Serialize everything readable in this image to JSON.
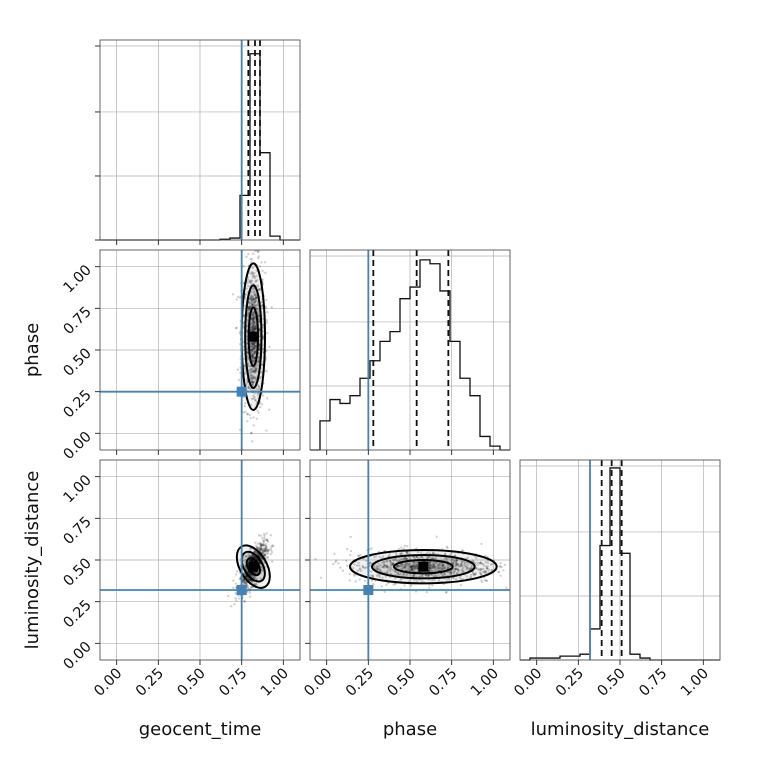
{
  "parameters": [
    "geocent_time",
    "phase",
    "luminosity_distance"
  ],
  "axis_labels": {
    "geocent_time": "geocent_time",
    "phase": "phase",
    "luminosity_distance": "luminosity_distance"
  },
  "tick_labels": [
    "0.00",
    "0.25",
    "0.50",
    "0.75",
    "1.00"
  ],
  "colors": {
    "truth": "#4682b4",
    "hist": "#111111",
    "grid": "#b0b0b0"
  },
  "chart_data": {
    "type": "corner",
    "range": [
      -0.1,
      1.1
    ],
    "ticks": [
      0.0,
      0.25,
      0.5,
      0.75,
      1.0
    ],
    "grid": true,
    "truths": {
      "geocent_time": 0.75,
      "phase": 0.25,
      "luminosity_distance": 0.32
    },
    "quantiles": {
      "geocent_time": [
        0.79,
        0.83,
        0.86
      ],
      "phase": [
        0.28,
        0.54,
        0.73
      ],
      "luminosity_distance": [
        0.39,
        0.45,
        0.51
      ]
    },
    "histograms": {
      "geocent_time": {
        "bin_edges": [
          -0.1,
          -0.04,
          0.02,
          0.08,
          0.14,
          0.2,
          0.26,
          0.32,
          0.38,
          0.44,
          0.5,
          0.56,
          0.62,
          0.68,
          0.74,
          0.8,
          0.86,
          0.92,
          0.98,
          1.04,
          1.1
        ],
        "counts": [
          0,
          0,
          0,
          0,
          0,
          0,
          0,
          0,
          0,
          0,
          0,
          0,
          0.004,
          0.01,
          0.23,
          0.96,
          0.45,
          0.02,
          0,
          0
        ]
      },
      "phase": {
        "bin_edges": [
          -0.1,
          -0.04,
          0.02,
          0.08,
          0.14,
          0.2,
          0.26,
          0.32,
          0.38,
          0.44,
          0.5,
          0.56,
          0.62,
          0.68,
          0.74,
          0.8,
          0.86,
          0.92,
          0.98,
          1.04,
          1.1
        ],
        "counts": [
          0,
          0.15,
          0.26,
          0.24,
          0.28,
          0.37,
          0.46,
          0.56,
          0.61,
          0.78,
          0.84,
          0.98,
          0.96,
          0.82,
          0.56,
          0.37,
          0.28,
          0.07,
          0.02,
          0
        ]
      },
      "luminosity_distance": {
        "bin_edges": [
          -0.1,
          -0.04,
          0.02,
          0.08,
          0.14,
          0.2,
          0.26,
          0.32,
          0.38,
          0.44,
          0.5,
          0.56,
          0.62,
          0.68,
          0.74,
          0.8,
          0.86,
          0.92,
          0.98,
          1.04,
          1.1
        ],
        "counts": [
          0,
          0.01,
          0.01,
          0.01,
          0.02,
          0.02,
          0.03,
          0.16,
          0.59,
          0.99,
          0.55,
          0.03,
          0.01,
          0,
          0,
          0,
          0,
          0,
          0,
          0
        ]
      }
    },
    "pairs": [
      {
        "x": "geocent_time",
        "y": "phase",
        "center": [
          0.82,
          0.58
        ],
        "spread": [
          0.035,
          0.22
        ],
        "corr": 0.0
      },
      {
        "x": "geocent_time",
        "y": "luminosity_distance",
        "center": [
          0.82,
          0.46
        ],
        "spread": [
          0.04,
          0.07
        ],
        "corr": 0.7
      },
      {
        "x": "phase",
        "y": "luminosity_distance",
        "center": [
          0.58,
          0.46
        ],
        "spread": [
          0.22,
          0.05
        ],
        "corr": 0.0
      }
    ]
  }
}
